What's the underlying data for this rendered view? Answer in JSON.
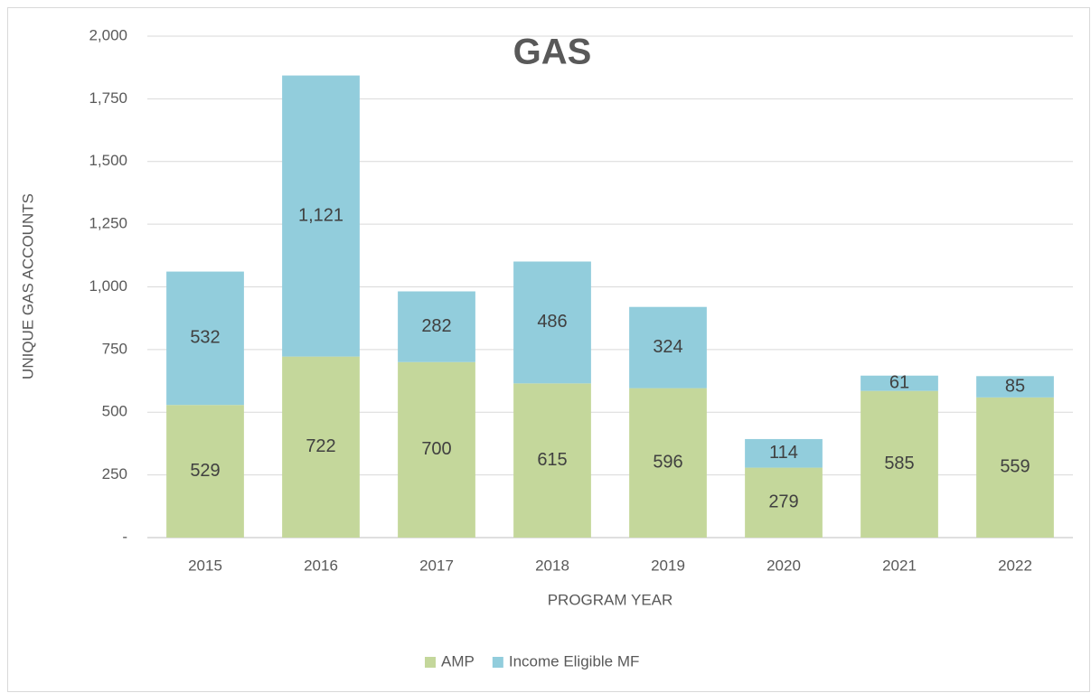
{
  "chart_data": {
    "type": "stacked-bar",
    "title": "GAS",
    "x_label": "PROGRAM  YEAR",
    "y_label": "UNIQUE GAS ACCOUNTS",
    "categories": [
      "2015",
      "2016",
      "2017",
      "2018",
      "2019",
      "2020",
      "2021",
      "2022"
    ],
    "series": [
      {
        "name": "AMP",
        "color": "#c4d79b",
        "values": [
          529,
          722,
          700,
          615,
          596,
          279,
          585,
          559
        ]
      },
      {
        "name": "Income Eligible MF",
        "color": "#92cddc",
        "values": [
          532,
          1121,
          282,
          486,
          324,
          114,
          61,
          85
        ],
        "value_labels": [
          "532",
          "1,121",
          "282",
          "486",
          "324",
          "114",
          "61",
          "85"
        ]
      }
    ],
    "ylim": [
      0,
      2000
    ],
    "yticks": [
      {
        "value": 0,
        "label": "-"
      },
      250,
      500,
      750,
      {
        "value": 1000,
        "label": "1,000"
      },
      {
        "value": 1250,
        "label": "1,250"
      },
      {
        "value": 1500,
        "label": "1,500"
      },
      {
        "value": 1750,
        "label": "1,750"
      },
      {
        "value": 2000,
        "label": "2,000"
      }
    ],
    "grid": true,
    "legend": "bottom"
  }
}
